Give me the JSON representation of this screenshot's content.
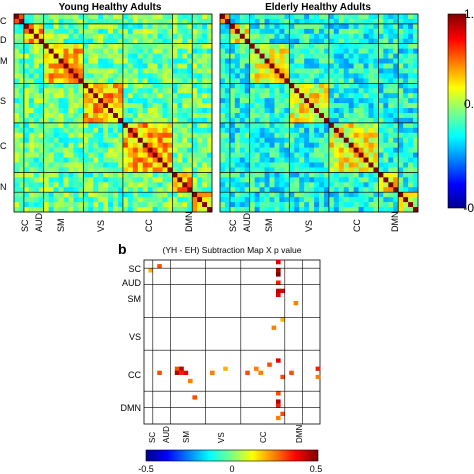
{
  "chart_data": [
    {
      "type": "heatmap",
      "title": "Young Healthy Adults",
      "x_tick_labels": [
        "SC",
        "AUD",
        "SM",
        "VS",
        "CC",
        "DMN"
      ],
      "y_tick_labels_visible": [
        "C",
        "D",
        "M",
        "S",
        "C",
        "N"
      ],
      "colorbar_ticks": [
        "1.",
        "0.",
        "-0"
      ]
    },
    {
      "type": "heatmap",
      "title": "Elderly Healthy Adults",
      "x_tick_labels": [
        "SC",
        "AUD",
        "SM",
        "VS",
        "CC",
        "DMN"
      ]
    },
    {
      "type": "heatmap",
      "panel_label": "b",
      "title": "(YH - EH) Subtraction Map X p value",
      "x_tick_labels": [
        "SC",
        "AUD",
        "SM",
        "VS",
        "CC",
        "DMN"
      ],
      "y_tick_labels": [
        "SC",
        "AUD",
        "SM",
        "VS",
        "CC",
        "DMN"
      ],
      "colorbar_ticks": [
        "-0.5",
        "0",
        "0.5"
      ],
      "colorbar_range": [
        -0.5,
        0.5
      ]
    }
  ],
  "colors": {
    "jet_low": "#00008f",
    "jet_high": "#800000",
    "divider": "#000000"
  }
}
